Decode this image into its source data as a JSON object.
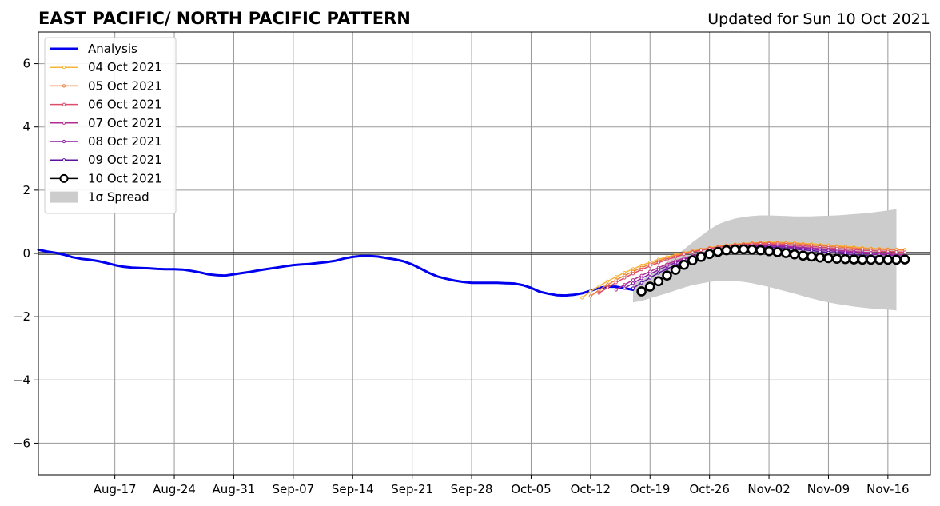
{
  "header": {
    "title": "EAST PACIFIC/ NORTH PACIFIC PATTERN",
    "updated": "Updated for Sun 10 Oct 2021"
  },
  "chart_data": {
    "type": "line",
    "title": "EAST PACIFIC/ NORTH PACIFIC PATTERN",
    "xlabel": "",
    "ylabel": "",
    "x_range": [
      "2021-08-08",
      "2021-11-21"
    ],
    "ylim": [
      -7,
      7
    ],
    "y_ticks": [
      -6,
      -4,
      -2,
      0,
      2,
      4,
      6
    ],
    "y_tick_labels": [
      "−6",
      "−4",
      "−2",
      "0",
      "2",
      "4",
      "6"
    ],
    "x_ticks": [
      "2021-08-17",
      "2021-08-24",
      "2021-08-31",
      "2021-09-07",
      "2021-09-14",
      "2021-09-21",
      "2021-09-28",
      "2021-10-05",
      "2021-10-12",
      "2021-10-19",
      "2021-10-26",
      "2021-11-02",
      "2021-11-09",
      "2021-11-16"
    ],
    "x_tick_labels": [
      "Aug-17",
      "Aug-24",
      "Aug-31",
      "Sep-07",
      "Sep-14",
      "Sep-21",
      "Sep-28",
      "Oct-05",
      "Oct-12",
      "Oct-19",
      "Oct-26",
      "Nov-02",
      "Nov-09",
      "Nov-16"
    ],
    "grid": true,
    "zero_line": true,
    "legend_position": "upper-left",
    "legend": [
      "Analysis",
      "04 Oct 2021",
      "05 Oct 2021",
      "06 Oct 2021",
      "07 Oct 2021",
      "08 Oct 2021",
      "09 Oct 2021",
      "10 Oct 2021",
      "1σ Spread"
    ],
    "analysis": {
      "name": "Analysis",
      "color": "#0000ee",
      "points": [
        [
          "2021-08-08",
          0.12
        ],
        [
          "2021-08-09",
          0.06
        ],
        [
          "2021-08-10",
          0.02
        ],
        [
          "2021-08-11",
          -0.04
        ],
        [
          "2021-08-12",
          -0.12
        ],
        [
          "2021-08-13",
          -0.17
        ],
        [
          "2021-08-14",
          -0.2
        ],
        [
          "2021-08-15",
          -0.24
        ],
        [
          "2021-08-16",
          -0.3
        ],
        [
          "2021-08-17",
          -0.37
        ],
        [
          "2021-08-18",
          -0.42
        ],
        [
          "2021-08-19",
          -0.45
        ],
        [
          "2021-08-20",
          -0.46
        ],
        [
          "2021-08-21",
          -0.47
        ],
        [
          "2021-08-22",
          -0.49
        ],
        [
          "2021-08-23",
          -0.5
        ],
        [
          "2021-08-24",
          -0.5
        ],
        [
          "2021-08-25",
          -0.51
        ],
        [
          "2021-08-26",
          -0.55
        ],
        [
          "2021-08-27",
          -0.6
        ],
        [
          "2021-08-28",
          -0.66
        ],
        [
          "2021-08-29",
          -0.69
        ],
        [
          "2021-08-30",
          -0.7
        ],
        [
          "2021-08-31",
          -0.66
        ],
        [
          "2021-09-01",
          -0.62
        ],
        [
          "2021-09-02",
          -0.58
        ],
        [
          "2021-09-03",
          -0.53
        ],
        [
          "2021-09-04",
          -0.49
        ],
        [
          "2021-09-05",
          -0.45
        ],
        [
          "2021-09-06",
          -0.41
        ],
        [
          "2021-09-07",
          -0.37
        ],
        [
          "2021-09-08",
          -0.35
        ],
        [
          "2021-09-09",
          -0.33
        ],
        [
          "2021-09-10",
          -0.3
        ],
        [
          "2021-09-11",
          -0.27
        ],
        [
          "2021-09-12",
          -0.23
        ],
        [
          "2021-09-13",
          -0.16
        ],
        [
          "2021-09-14",
          -0.11
        ],
        [
          "2021-09-15",
          -0.08
        ],
        [
          "2021-09-16",
          -0.08
        ],
        [
          "2021-09-17",
          -0.1
        ],
        [
          "2021-09-18",
          -0.15
        ],
        [
          "2021-09-19",
          -0.19
        ],
        [
          "2021-09-20",
          -0.25
        ],
        [
          "2021-09-21",
          -0.35
        ],
        [
          "2021-09-22",
          -0.48
        ],
        [
          "2021-09-23",
          -0.62
        ],
        [
          "2021-09-24",
          -0.73
        ],
        [
          "2021-09-25",
          -0.8
        ],
        [
          "2021-09-26",
          -0.86
        ],
        [
          "2021-09-27",
          -0.9
        ],
        [
          "2021-09-28",
          -0.93
        ],
        [
          "2021-09-29",
          -0.93
        ],
        [
          "2021-09-30",
          -0.93
        ],
        [
          "2021-10-01",
          -0.93
        ],
        [
          "2021-10-02",
          -0.94
        ],
        [
          "2021-10-03",
          -0.95
        ],
        [
          "2021-10-04",
          -1.0
        ],
        [
          "2021-10-05",
          -1.09
        ],
        [
          "2021-10-06",
          -1.21
        ],
        [
          "2021-10-07",
          -1.27
        ],
        [
          "2021-10-08",
          -1.32
        ],
        [
          "2021-10-09",
          -1.33
        ],
        [
          "2021-10-10",
          -1.31
        ],
        [
          "2021-10-11",
          -1.26
        ],
        [
          "2021-10-12",
          -1.18
        ],
        [
          "2021-10-13",
          -1.09
        ],
        [
          "2021-10-14",
          -1.05
        ],
        [
          "2021-10-15",
          -1.05
        ],
        [
          "2021-10-16",
          -1.1
        ],
        [
          "2021-10-17",
          -1.15
        ]
      ]
    },
    "spread": {
      "name": "1σ Spread",
      "color": "#cccccc",
      "x": [
        "2021-10-17",
        "2021-10-18",
        "2021-10-19",
        "2021-10-20",
        "2021-10-21",
        "2021-10-22",
        "2021-10-23",
        "2021-10-24",
        "2021-10-25",
        "2021-10-26",
        "2021-10-27",
        "2021-10-28",
        "2021-10-29",
        "2021-10-30",
        "2021-10-31",
        "2021-11-01",
        "2021-11-02",
        "2021-11-03",
        "2021-11-04",
        "2021-11-05",
        "2021-11-06",
        "2021-11-07",
        "2021-11-08",
        "2021-11-09",
        "2021-11-10",
        "2021-11-11",
        "2021-11-12",
        "2021-11-13",
        "2021-11-14",
        "2021-11-15",
        "2021-11-16",
        "2021-11-17"
      ],
      "upper": [
        -0.95,
        -0.85,
        -0.68,
        -0.48,
        -0.28,
        -0.08,
        0.13,
        0.35,
        0.55,
        0.75,
        0.92,
        1.02,
        1.1,
        1.15,
        1.18,
        1.2,
        1.2,
        1.19,
        1.18,
        1.17,
        1.17,
        1.17,
        1.18,
        1.19,
        1.2,
        1.22,
        1.24,
        1.26,
        1.29,
        1.32,
        1.36,
        1.4
      ],
      "lower": [
        -1.55,
        -1.5,
        -1.42,
        -1.34,
        -1.26,
        -1.17,
        -1.08,
        -1.0,
        -0.95,
        -0.9,
        -0.87,
        -0.86,
        -0.87,
        -0.9,
        -0.94,
        -1.0,
        -1.06,
        -1.13,
        -1.2,
        -1.27,
        -1.35,
        -1.42,
        -1.49,
        -1.55,
        -1.6,
        -1.64,
        -1.68,
        -1.71,
        -1.74,
        -1.76,
        -1.78,
        -1.8
      ]
    },
    "forecasts": [
      {
        "name": "04 Oct 2021",
        "color": "#f7b538",
        "start": "2021-10-11",
        "values": [
          -1.4,
          -1.2,
          -1.03,
          -0.88,
          -0.74,
          -0.61,
          -0.49,
          -0.38,
          -0.28,
          -0.19,
          -0.11,
          -0.04,
          0.02,
          0.08,
          0.13,
          0.18,
          0.22,
          0.26,
          0.29,
          0.31,
          0.33,
          0.34,
          0.35,
          0.35,
          0.34,
          0.33,
          0.31,
          0.3,
          0.28,
          0.26,
          0.24,
          0.22,
          0.2,
          0.18,
          0.16,
          0.15,
          0.14,
          0.13,
          0.12
        ]
      },
      {
        "name": "05 Oct 2021",
        "color": "#f07d3a",
        "start": "2021-10-12",
        "values": [
          -1.35,
          -1.16,
          -0.99,
          -0.84,
          -0.7,
          -0.57,
          -0.45,
          -0.34,
          -0.24,
          -0.15,
          -0.07,
          0.0,
          0.06,
          0.12,
          0.17,
          0.21,
          0.25,
          0.28,
          0.3,
          0.32,
          0.33,
          0.33,
          0.33,
          0.32,
          0.31,
          0.29,
          0.27,
          0.25,
          0.23,
          0.21,
          0.19,
          0.17,
          0.15,
          0.14,
          0.13,
          0.12,
          0.11,
          0.1
        ]
      },
      {
        "name": "06 Oct 2021",
        "color": "#db4d6a",
        "start": "2021-10-13",
        "values": [
          -1.25,
          -1.08,
          -0.92,
          -0.77,
          -0.64,
          -0.51,
          -0.4,
          -0.29,
          -0.2,
          -0.11,
          -0.03,
          0.04,
          0.1,
          0.15,
          0.19,
          0.23,
          0.26,
          0.28,
          0.29,
          0.3,
          0.3,
          0.29,
          0.28,
          0.26,
          0.24,
          0.22,
          0.2,
          0.18,
          0.16,
          0.14,
          0.12,
          0.1,
          0.09,
          0.07,
          0.06,
          0.05,
          0.04
        ]
      },
      {
        "name": "07 Oct 2021",
        "color": "#b32d90",
        "start": "2021-10-15",
        "values": [
          -1.15,
          -0.99,
          -0.84,
          -0.7,
          -0.57,
          -0.45,
          -0.34,
          -0.24,
          -0.15,
          -0.07,
          0.0,
          0.06,
          0.11,
          0.16,
          0.19,
          0.22,
          0.24,
          0.25,
          0.25,
          0.24,
          0.23,
          0.21,
          0.19,
          0.17,
          0.15,
          0.13,
          0.1,
          0.08,
          0.06,
          0.04,
          0.02,
          0.0,
          -0.01,
          -0.03,
          -0.04
        ]
      },
      {
        "name": "08 Oct 2021",
        "color": "#8a1fa6",
        "start": "2021-10-16",
        "values": [
          -1.1,
          -0.94,
          -0.79,
          -0.65,
          -0.52,
          -0.4,
          -0.29,
          -0.19,
          -0.1,
          -0.02,
          0.05,
          0.1,
          0.15,
          0.18,
          0.21,
          0.22,
          0.23,
          0.23,
          0.22,
          0.2,
          0.18,
          0.16,
          0.14,
          0.11,
          0.09,
          0.06,
          0.04,
          0.02,
          0.0,
          -0.02,
          -0.04,
          -0.05,
          -0.07,
          -0.08
        ]
      },
      {
        "name": "09 Oct 2021",
        "color": "#5b14a0",
        "start": "2021-10-17",
        "values": [
          -1.1,
          -0.93,
          -0.77,
          -0.62,
          -0.49,
          -0.37,
          -0.26,
          -0.16,
          -0.07,
          0.01,
          0.07,
          0.12,
          0.16,
          0.18,
          0.2,
          0.2,
          0.19,
          0.18,
          0.16,
          0.14,
          0.11,
          0.09,
          0.06,
          0.03,
          0.01,
          -0.02,
          -0.04,
          -0.06,
          -0.08,
          -0.1,
          -0.11,
          -0.12,
          -0.13
        ]
      },
      {
        "name": "10 Oct 2021",
        "color": "#000000",
        "start": "2021-10-18",
        "values": [
          -1.2,
          -1.05,
          -0.88,
          -0.7,
          -0.52,
          -0.36,
          -0.22,
          -0.11,
          -0.02,
          0.05,
          0.1,
          0.12,
          0.13,
          0.12,
          0.1,
          0.07,
          0.04,
          0.01,
          -0.03,
          -0.07,
          -0.1,
          -0.13,
          -0.15,
          -0.17,
          -0.18,
          -0.19,
          -0.2,
          -0.2,
          -0.2,
          -0.2,
          -0.2,
          -0.19
        ]
      }
    ]
  }
}
